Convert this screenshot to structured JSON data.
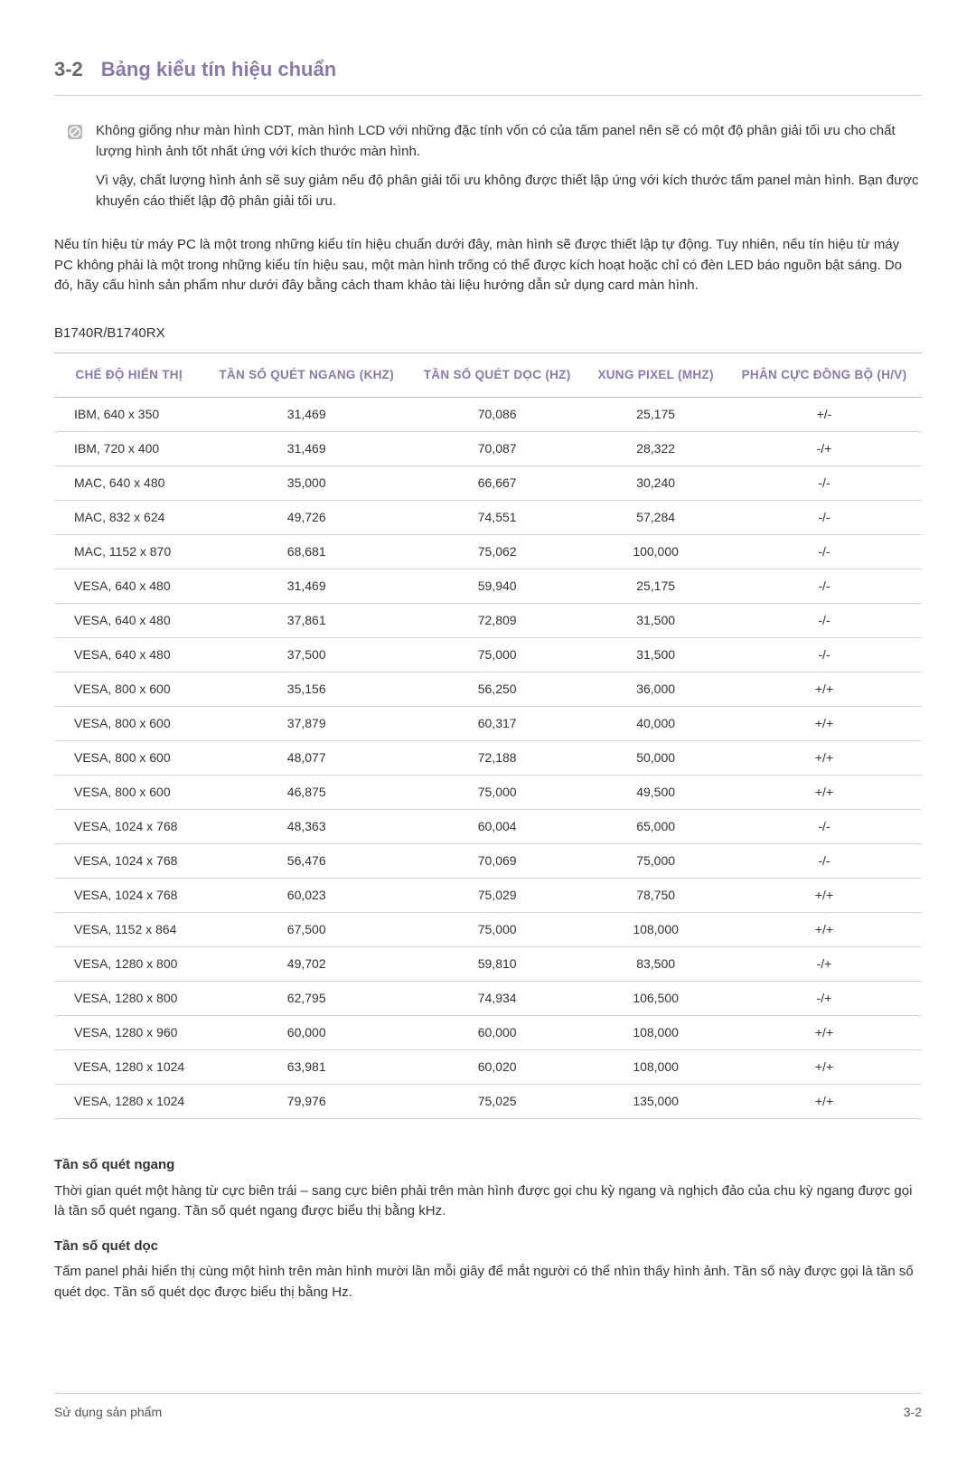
{
  "header": {
    "number": "3-2",
    "title": "Bảng kiểu tín hiệu chuẩn"
  },
  "note": {
    "p1": "Không giống như màn hình CDT, màn hình LCD với những đặc tính vốn có của tấm panel nên sẽ có một độ phân giải tối ưu cho chất lượng hình ảnh tốt nhất ứng với kích thước màn hình.",
    "p2": "Vì vậy, chất lượng hình ảnh sẽ suy giảm nếu độ phân giải tối ưu không được thiết lập ứng với kích thước tấm panel màn hình. Bạn được khuyến cáo thiết lập độ phân giải tối ưu."
  },
  "bodyText": "Nếu tín hiệu từ máy PC là một trong những kiểu tín hiệu chuẩn dưới đây, màn hình sẽ được thiết lập tự động. Tuy nhiên, nếu tín hiệu từ máy PC không phải là một trong những kiểu tín hiệu sau, một màn hình trống có thể được kích hoạt hoặc chỉ có đèn LED báo nguồn bật sáng. Do đó, hãy cấu hình sản phẩm như dưới đây bằng cách tham khảo tài liệu hướng dẫn sử dụng card màn hình.",
  "modelLabel": "B1740R/B1740RX",
  "table": {
    "columns": [
      "CHẾ ĐỘ HIỂN THỊ",
      "TẦN SỐ QUÉT NGANG (KHZ)",
      "TẦN SỐ QUÉT DỌC (HZ)",
      "XUNG PIXEL (MHZ)",
      "PHÂN CỰC ĐỒNG BỘ (H/V)"
    ],
    "rows": [
      [
        "IBM, 640 x 350",
        "31,469",
        "70,086",
        "25,175",
        "+/-"
      ],
      [
        "IBM, 720 x 400",
        "31,469",
        "70,087",
        "28,322",
        "-/+"
      ],
      [
        "MAC, 640 x 480",
        "35,000",
        "66,667",
        "30,240",
        "-/-"
      ],
      [
        "MAC, 832 x 624",
        "49,726",
        "74,551",
        "57,284",
        "-/-"
      ],
      [
        "MAC, 1152 x 870",
        "68,681",
        "75,062",
        "100,000",
        "-/-"
      ],
      [
        "VESA, 640 x 480",
        "31,469",
        "59,940",
        "25,175",
        "-/-"
      ],
      [
        "VESA, 640 x 480",
        "37,861",
        "72,809",
        "31,500",
        "-/-"
      ],
      [
        "VESA, 640 x 480",
        "37,500",
        "75,000",
        "31,500",
        "-/-"
      ],
      [
        "VESA, 800 x 600",
        "35,156",
        "56,250",
        "36,000",
        "+/+"
      ],
      [
        "VESA, 800 x 600",
        "37,879",
        "60,317",
        "40,000",
        "+/+"
      ],
      [
        "VESA, 800 x 600",
        "48,077",
        "72,188",
        "50,000",
        "+/+"
      ],
      [
        "VESA, 800 x 600",
        "46,875",
        "75,000",
        "49,500",
        "+/+"
      ],
      [
        "VESA, 1024 x 768",
        "48,363",
        "60,004",
        "65,000",
        "-/-"
      ],
      [
        "VESA, 1024 x 768",
        "56,476",
        "70,069",
        "75,000",
        "-/-"
      ],
      [
        "VESA, 1024 x 768",
        "60,023",
        "75,029",
        "78,750",
        "+/+"
      ],
      [
        "VESA, 1152 x 864",
        "67,500",
        "75,000",
        "108,000",
        "+/+"
      ],
      [
        "VESA, 1280 x 800",
        "49,702",
        "59,810",
        "83,500",
        "-/+"
      ],
      [
        "VESA, 1280 x 800",
        "62,795",
        "74,934",
        "106,500",
        "-/+"
      ],
      [
        "VESA, 1280 x 960",
        "60,000",
        "60,000",
        "108,000",
        "+/+"
      ],
      [
        "VESA, 1280 x 1024",
        "63,981",
        "60,020",
        "108,000",
        "+/+"
      ],
      [
        "VESA, 1280 x 1024",
        "79,976",
        "75,025",
        "135,000",
        "+/+"
      ]
    ]
  },
  "definitions": {
    "h1": "Tần số quét ngang",
    "b1": "Thời gian quét một hàng từ cực biên trái – sang cực biên phải trên màn hình được gọi chu kỳ ngang và nghịch đảo của chu kỳ ngang được gọi là tần số quét ngang. Tần số quét ngang được biểu thị bằng kHz.",
    "h2": "Tần số quét dọc",
    "b2": "Tấm panel phải hiển thị cùng một hình trên màn hình mười lần mỗi giây để mắt người có thể nhìn thấy hình ảnh. Tần số này được gọi là tần số quét dọc. Tần số quét dọc được biểu thị bằng Hz."
  },
  "footer": {
    "left": "Sử dụng sản phẩm",
    "right": "3-2"
  },
  "style": {
    "accentColor": "#8a7aa8",
    "borderColor": "#bfbfbf",
    "rowBorderColor": "#d6d6d6",
    "textColor": "#333333",
    "headingGray": "#6a6a6a"
  }
}
